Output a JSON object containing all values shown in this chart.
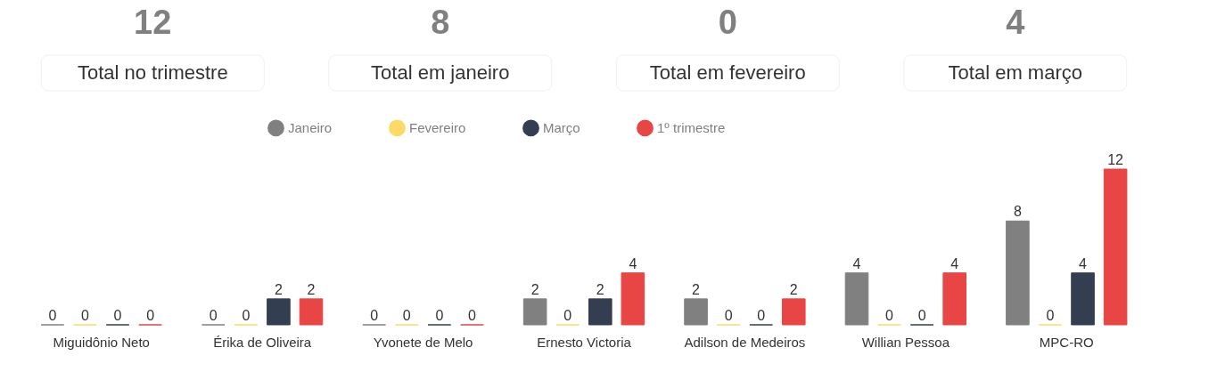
{
  "chart_data": {
    "type": "bar",
    "categories": [
      "Miguidônio Neto",
      "Érika de Oliveira",
      "Yvonete de Melo",
      "Ernesto Victoria",
      "Adilson de Medeiros",
      "Willian Pessoa",
      "MPC-RO"
    ],
    "series": [
      {
        "name": "Janeiro",
        "color": "#808080",
        "values": [
          0,
          0,
          0,
          2,
          2,
          4,
          8
        ]
      },
      {
        "name": "Fevereiro",
        "color": "#fdd966",
        "values": [
          0,
          0,
          0,
          0,
          0,
          0,
          0
        ]
      },
      {
        "name": "Março",
        "color": "#333f50",
        "values": [
          0,
          2,
          0,
          2,
          0,
          0,
          4
        ]
      },
      {
        "name": "1º trimestre",
        "color": "#e84545",
        "values": [
          0,
          2,
          0,
          4,
          2,
          4,
          12
        ]
      }
    ],
    "data_labels": true,
    "legend": "top",
    "grid": false,
    "tick_labels": "x",
    "annotations": [
      "12",
      "Total no trimestre",
      "8",
      "Total em janeiro",
      "0",
      "Total em fevereiro",
      "4",
      "Total em março"
    ]
  }
}
